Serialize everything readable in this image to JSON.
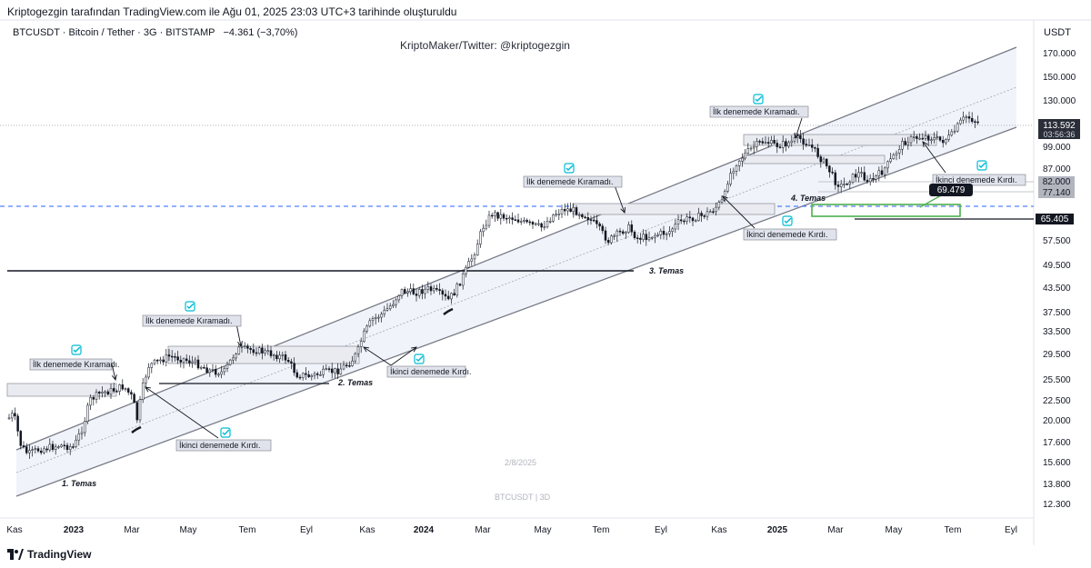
{
  "header": {
    "created_line": "Kriptogezgin tarafından TradingView.com ile Ağu 01, 2025 23:03 UTC+3 tarihinde oluşturuldu"
  },
  "symbol": {
    "line": "BTCUSDT · Bitcoin / Tether · 3G · BITSTAMP",
    "change": "−4.361 (−3,70%)"
  },
  "watermark_top": "KriptoMaker/Twitter: @kriptogezgin",
  "currency": "USDT",
  "footer": {
    "brand": "TradingView"
  },
  "chart_data": {
    "type": "candlestick",
    "symbol": "BTCUSDT",
    "interval": "3D",
    "y_scale": "log",
    "y_tick_labels": [
      "170.000",
      "150.000",
      "130.000",
      "99.000",
      "87.000",
      "57.500",
      "49.500",
      "43.500",
      "37.500",
      "33.500",
      "29.500",
      "25.500",
      "22.500",
      "20.000",
      "17.600",
      "15.600",
      "13.800",
      "12.300"
    ],
    "x_tick_labels": [
      {
        "label": "Kas",
        "bold": false
      },
      {
        "label": "2023",
        "bold": true
      },
      {
        "label": "Mar",
        "bold": false
      },
      {
        "label": "May",
        "bold": false
      },
      {
        "label": "Tem",
        "bold": false
      },
      {
        "label": "Eyl",
        "bold": false
      },
      {
        "label": "Kas",
        "bold": false
      },
      {
        "label": "2024",
        "bold": true
      },
      {
        "label": "Mar",
        "bold": false
      },
      {
        "label": "May",
        "bold": false
      },
      {
        "label": "Tem",
        "bold": false
      },
      {
        "label": "Eyl",
        "bold": false
      },
      {
        "label": "Kas",
        "bold": false
      },
      {
        "label": "2025",
        "bold": true
      },
      {
        "label": "Mar",
        "bold": false
      },
      {
        "label": "May",
        "bold": false
      },
      {
        "label": "Tem",
        "bold": false
      },
      {
        "label": "Eyl",
        "bold": false
      }
    ],
    "price_badges": [
      {
        "label": "113.592",
        "sub": "03:56:36",
        "color": "#2a2e39"
      },
      {
        "label": "82.000",
        "color": "#b2b5be"
      },
      {
        "label": "77.140",
        "color": "#b2b5be"
      },
      {
        "label": "65.405",
        "color": "#131722"
      }
    ],
    "callout": {
      "label": "69.479"
    },
    "annotations": [
      {
        "text": "İlk denemede Kıramadı."
      },
      {
        "text": "İkinci denemede Kırdı."
      },
      {
        "text": "İlk denemede Kıramadı."
      },
      {
        "text": "İkinci denemede Kırdı."
      },
      {
        "text": "İlk denemede Kıramadı."
      },
      {
        "text": "İkinci denemede Kırdı."
      },
      {
        "text": "İlk denemede Kıramadı."
      },
      {
        "text": "İkinci denemede Kırdı."
      }
    ],
    "touch_labels": [
      "1. Temas",
      "2. Temas",
      "3. Temas",
      "4. Temas"
    ],
    "chart_watermark": {
      "date": "2/8/2025",
      "symbol": "BTCUSDT | 3D"
    },
    "colors": {
      "candle": "#131722",
      "channel_line": "#787b86",
      "channel_fill": "#f0f3fa",
      "support_line": "#131722",
      "dashed_level": "#2962ff",
      "target_box": "#4caf50",
      "check_icon": "#00bcd4"
    }
  }
}
